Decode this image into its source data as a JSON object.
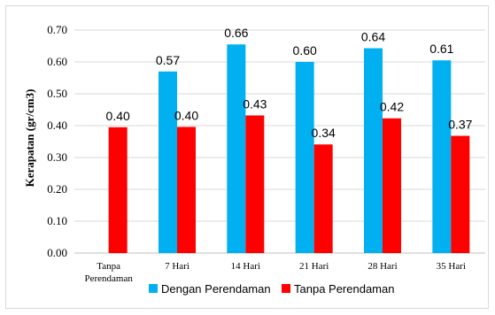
{
  "chart_data": {
    "type": "bar",
    "title": "",
    "xlabel": "",
    "ylabel": "Kerapatan (gr/cm3)",
    "ylim": [
      0,
      0.7
    ],
    "yticks": [
      "0.00",
      "0.10",
      "0.20",
      "0.30",
      "0.40",
      "0.50",
      "0.60",
      "0.70"
    ],
    "grid": true,
    "legend_position": "bottom",
    "categories": [
      [
        "Tanpa",
        "Perendaman"
      ],
      [
        "7 Hari"
      ],
      [
        "14 Hari"
      ],
      [
        "21 Hari"
      ],
      [
        "28 Hari"
      ],
      [
        "35 Hari"
      ]
    ],
    "series": [
      {
        "name": "Dengan Perendaman",
        "color": "#00b0f0",
        "values": [
          null,
          0.57,
          0.655,
          0.6,
          0.643,
          0.605
        ],
        "labels": [
          "",
          "0.57",
          "0.66",
          "0.60",
          "0.64",
          "0.61"
        ]
      },
      {
        "name": "Tanpa Perendaman",
        "color": "#ff0000",
        "values": [
          0.395,
          0.396,
          0.432,
          0.341,
          0.423,
          0.368
        ],
        "labels": [
          "0.40",
          "0.40",
          "0.43",
          "0.34",
          "0.42",
          "0.37"
        ]
      }
    ]
  }
}
